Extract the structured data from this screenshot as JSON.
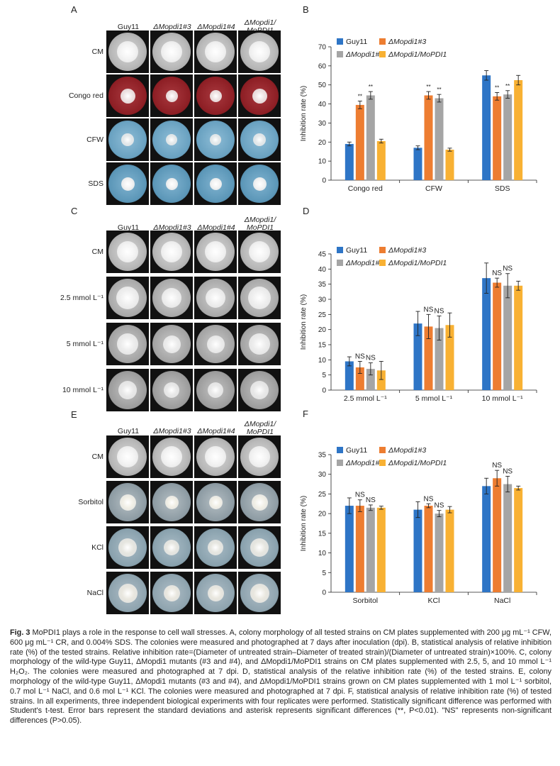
{
  "figure": {
    "colors": {
      "guy11": "#2e75c6",
      "m3": "#ed7d31",
      "m4": "#a5a5a5",
      "comp": "#f8b133"
    },
    "plates": [
      {
        "letter": "A",
        "columns": [
          "Guy11",
          "ΔMopdi1#3",
          "ΔMopdi1#4",
          "ΔMopdi1/ MoPDI1"
        ],
        "rows": [
          "CM",
          "Congo red",
          "CFW",
          "SDS"
        ]
      },
      {
        "letter": "C",
        "columns": [
          "Guy11",
          "ΔMopdi1#3",
          "ΔMopdi1#4",
          "ΔMopdi1/ MoPDI1"
        ],
        "rows": [
          "CM",
          "2.5 mmol L⁻¹",
          "5 mmol L⁻¹",
          "10 mmol L⁻¹"
        ]
      },
      {
        "letter": "E",
        "columns": [
          "Guy11",
          "ΔMopdi1#3",
          "ΔMopdi1#4",
          "ΔMopdi1/ MoPDI1"
        ],
        "rows": [
          "CM",
          "Sorbitol",
          "KCl",
          "NaCl"
        ]
      }
    ],
    "caption": {
      "label": "Fig. 3",
      "text": "MoPDI1 plays a role in the response to cell wall stresses. A, colony morphology of all tested strains on CM plates supplemented with 200 μg mL⁻¹ CFW, 600 μg mL⁻¹ CR, and 0.004% SDS. The colonies were measured and photographed at 7 days after inoculation (dpi). B, statistical analysis of relative inhibition rate (%) of the tested strains. Relative inhibition rate=(Diameter of untreated strain–Diameter of treated strain)/(Diameter of untreated strain)×100%. C, colony morphology of the wild-type Guy11, ΔMopdi1 mutants (#3 and #4), and ΔMopdi1/MoPDI1 strains on CM plates supplemented with 2.5, 5, and 10 mmol L⁻¹ H₂O₂. The colonies were measured and photographed at 7 dpi. D, statistical analysis of the relative inhibition rate (%) of the tested strains. E, colony morphology of the wild-type Guy11, ΔMopdi1 mutants (#3 and #4), and ΔMopdi1/MoPDI1 strains grown on CM plates supplemented with 1 mol L⁻¹ sorbitol, 0.7 mol L⁻¹ NaCl, and 0.6 mol L⁻¹ KCl. The colonies were measured and photographed at 7 dpi. F, statistical analysis of relative inhibition rate (%) of tested strains. In all experiments, three independent biological experiments with four replicates were performed. Statistically significant difference was performed with Student's t-test. Error bars represent the standard deviations and asterisk represents significant differences (**, P<0.01). \"NS\" represents non-significant differences (P>0.05)."
    }
  },
  "chart_data": [
    {
      "letter": "B",
      "type": "bar",
      "title": "",
      "ylabel": "Inhibition rate (%)",
      "xlabel": "",
      "ylim": [
        0,
        70
      ],
      "yticks": [
        0,
        10,
        20,
        30,
        40,
        50,
        60,
        70
      ],
      "categories": [
        "Congo red",
        "CFW",
        "SDS"
      ],
      "legend": [
        "Guy11",
        "ΔMopdi1#3",
        "ΔMopdi1#4",
        "ΔMopdi1/MoPDI1"
      ],
      "series": [
        {
          "name": "Guy11",
          "values": [
            19,
            17,
            55
          ],
          "errors": [
            1,
            1,
            2.5
          ],
          "marks": [
            "",
            "",
            ""
          ]
        },
        {
          "name": "ΔMopdi1#3",
          "values": [
            39.5,
            44.5,
            44
          ],
          "errors": [
            2,
            2,
            2
          ],
          "marks": [
            "**",
            "**",
            "**"
          ]
        },
        {
          "name": "ΔMopdi1#4",
          "values": [
            44.5,
            43,
            45
          ],
          "errors": [
            2,
            2,
            2
          ],
          "marks": [
            "**",
            "**",
            "**"
          ]
        },
        {
          "name": "ΔMopdi1/MoPDI1",
          "values": [
            20.5,
            16,
            52.5
          ],
          "errors": [
            1,
            0.8,
            2.5
          ],
          "marks": [
            "",
            "",
            ""
          ]
        }
      ]
    },
    {
      "letter": "D",
      "type": "bar",
      "title": "",
      "ylabel": "Inhibition rate (%)",
      "xlabel": "",
      "ylim": [
        0,
        45
      ],
      "yticks": [
        0,
        5,
        10,
        15,
        20,
        25,
        30,
        35,
        40,
        45
      ],
      "categories": [
        "2.5 mmol L⁻¹",
        "5 mmol L⁻¹",
        "10 mmol L⁻¹"
      ],
      "legend": [
        "Guy11",
        "ΔMopdi1#3",
        "ΔMopdi1#4",
        "ΔMopdi1/MoPDI1"
      ],
      "series": [
        {
          "name": "Guy11",
          "values": [
            9.5,
            22,
            37
          ],
          "errors": [
            1.5,
            4,
            5
          ],
          "marks": [
            "",
            "",
            ""
          ]
        },
        {
          "name": "ΔMopdi1#3",
          "values": [
            7.5,
            21,
            35.5
          ],
          "errors": [
            2,
            4,
            1.5
          ],
          "marks": [
            "NS",
            "NS",
            "NS"
          ]
        },
        {
          "name": "ΔMopdi1#4",
          "values": [
            7,
            20.5,
            34.5
          ],
          "errors": [
            2,
            4,
            4
          ],
          "marks": [
            "NS",
            "NS",
            "NS"
          ]
        },
        {
          "name": "ΔMopdi1/MoPDI1",
          "values": [
            6.5,
            21.5,
            34.5
          ],
          "errors": [
            3,
            4,
            1.5
          ],
          "marks": [
            "",
            "",
            ""
          ]
        }
      ]
    },
    {
      "letter": "F",
      "type": "bar",
      "title": "",
      "ylabel": "Inhibition rate (%)",
      "xlabel": "",
      "ylim": [
        0,
        35
      ],
      "yticks": [
        0,
        5,
        10,
        15,
        20,
        25,
        30,
        35
      ],
      "categories": [
        "Sorbitol",
        "KCl",
        "NaCl"
      ],
      "legend": [
        "Guy11",
        "ΔMopdi1#3",
        "ΔMopdi1#4",
        "ΔMopdi1/MoPDI1"
      ],
      "series": [
        {
          "name": "Guy11",
          "values": [
            22,
            21,
            27
          ],
          "errors": [
            2,
            2,
            2
          ],
          "marks": [
            "",
            "",
            ""
          ]
        },
        {
          "name": "ΔMopdi1#3",
          "values": [
            22,
            22,
            29
          ],
          "errors": [
            1.5,
            0.5,
            2
          ],
          "marks": [
            "NS",
            "NS",
            "NS"
          ]
        },
        {
          "name": "ΔMopdi1#4",
          "values": [
            21.5,
            20,
            27.5
          ],
          "errors": [
            0.7,
            0.8,
            2
          ],
          "marks": [
            "NS",
            "NS",
            "NS"
          ]
        },
        {
          "name": "ΔMopdi1/MoPDI1",
          "values": [
            21.5,
            21,
            26.5
          ],
          "errors": [
            0.4,
            0.8,
            0.5
          ],
          "marks": [
            "",
            "",
            ""
          ]
        }
      ]
    }
  ]
}
